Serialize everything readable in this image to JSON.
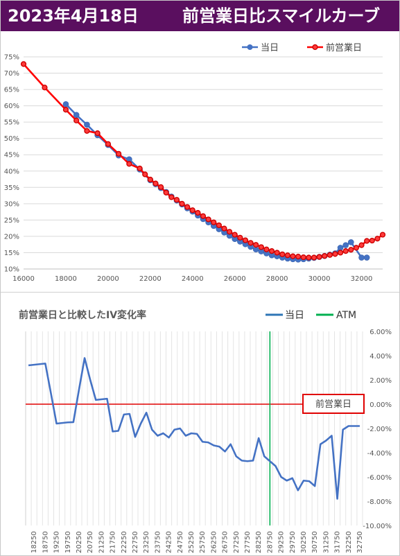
{
  "header": {
    "date": "2023年4月18日",
    "title": "前営業日比スマイルカーブ",
    "background": "#5a0f5f"
  },
  "chart_data": [
    {
      "type": "line",
      "title": "",
      "xlim": [
        16000,
        33000
      ],
      "ylim": [
        10,
        75
      ],
      "x_ticks": [
        16000,
        18000,
        20000,
        22000,
        24000,
        26000,
        28000,
        30000,
        32000
      ],
      "y_ticks": [
        "10%",
        "15%",
        "20%",
        "25%",
        "30%",
        "35%",
        "40%",
        "45%",
        "50%",
        "55%",
        "60%",
        "65%",
        "70%",
        "75%"
      ],
      "legend_position": "top-right",
      "grid": true,
      "series": [
        {
          "name": "当日",
          "color": "#4472c4",
          "x": [
            18000,
            18500,
            19000,
            19500,
            20000,
            20500,
            21000,
            21500,
            22000,
            22250,
            22500,
            22750,
            23000,
            23250,
            23500,
            23750,
            24000,
            24250,
            24500,
            24750,
            25000,
            25250,
            25500,
            25750,
            26000,
            26250,
            26500,
            26750,
            27000,
            27250,
            27500,
            27750,
            28000,
            28250,
            28500,
            28750,
            29000,
            29250,
            29500,
            29750,
            30000,
            30250,
            30500,
            30750,
            31000,
            31250,
            31500,
            32000,
            32250
          ],
          "y": [
            60.5,
            57.2,
            54.2,
            51.0,
            48.0,
            44.8,
            43.6,
            40.5,
            37.2,
            36.0,
            34.8,
            33.6,
            32.2,
            31.0,
            29.8,
            28.6,
            27.6,
            26.4,
            25.3,
            24.3,
            23.2,
            22.2,
            21.2,
            20.2,
            19.2,
            18.4,
            17.6,
            16.8,
            16.0,
            15.4,
            14.8,
            14.2,
            13.9,
            13.5,
            13.2,
            13.0,
            12.9,
            13.0,
            13.2,
            13.4,
            13.7,
            14.0,
            14.4,
            14.8,
            16.5,
            17.3,
            18.2,
            13.5,
            13.5
          ]
        },
        {
          "name": "前営業日",
          "color": "#ff0000",
          "x": [
            16000,
            17000,
            18000,
            18500,
            19000,
            19500,
            20000,
            20500,
            21000,
            21500,
            21750,
            22000,
            22250,
            22500,
            22750,
            23000,
            23250,
            23500,
            23750,
            24000,
            24250,
            24500,
            24750,
            25000,
            25250,
            25500,
            25750,
            26000,
            26250,
            26500,
            26750,
            27000,
            27250,
            27500,
            27750,
            28000,
            28250,
            28500,
            28750,
            29000,
            29250,
            29500,
            29750,
            30000,
            30250,
            30500,
            30750,
            31000,
            31250,
            31500,
            31750,
            32000,
            32250,
            32500,
            32750,
            33000
          ],
          "y": [
            72.8,
            65.6,
            58.8,
            55.5,
            52.3,
            51.6,
            48.3,
            45.3,
            42.2,
            40.8,
            39.0,
            37.4,
            36.2,
            35.1,
            33.4,
            32.0,
            31.2,
            30.0,
            29.0,
            28.0,
            27.2,
            26.2,
            25.2,
            24.3,
            23.4,
            22.4,
            21.4,
            20.5,
            19.6,
            18.8,
            18.0,
            17.4,
            16.7,
            16.0,
            15.5,
            15.0,
            14.5,
            14.2,
            13.9,
            13.8,
            13.6,
            13.5,
            13.5,
            13.7,
            14.0,
            14.3,
            14.6,
            15.0,
            15.5,
            15.9,
            16.5,
            17.3,
            18.6,
            18.7,
            19.3,
            20.5
          ]
        }
      ]
    },
    {
      "type": "line",
      "title": "前営業日と比較したIV変化率",
      "ylim": [
        -10,
        6
      ],
      "y_ticks": [
        "6.00%",
        "4.00%",
        "2.00%",
        "0.00%",
        "-2.00%",
        "-4.00%",
        "-6.00%",
        "-8.00%",
        "-10.00%"
      ],
      "x_labels": [
        "18250",
        "18750",
        "19250",
        "19750",
        "20250",
        "20750",
        "21250",
        "21750",
        "22250",
        "22750",
        "23250",
        "23750",
        "24250",
        "24750",
        "25250",
        "25750",
        "26250",
        "26750",
        "27250",
        "27750",
        "28250",
        "28750",
        "29250",
        "29750",
        "30250",
        "30750",
        "31250",
        "31750",
        "32250",
        "32750"
      ],
      "y_axis_position": "right",
      "legend_position": "top-right",
      "grid": "vertical",
      "atm_strike": 28750,
      "annotation": "前営業日",
      "series": [
        {
          "name": "当日",
          "color": "#4472c4",
          "x": [
            18000,
            18250,
            18500,
            18750,
            19000,
            19250,
            19500,
            19750,
            20000,
            20250,
            20500,
            20750,
            21000,
            21250,
            21500,
            21750,
            22000,
            22250,
            22500,
            22750,
            23000,
            23250,
            23500,
            23750,
            24000,
            24250,
            24500,
            24750,
            25000,
            25250,
            25500,
            25750,
            26000,
            26250,
            26500,
            26750,
            27000,
            27250,
            27500,
            27750,
            28000,
            28250,
            28500,
            28750,
            29000,
            29250,
            29500,
            29750,
            30000,
            30250,
            30500,
            30750,
            31000,
            31250,
            31500,
            31750,
            32000,
            32250,
            32500,
            32750
          ],
          "y": [
            3.2,
            3.25,
            3.3,
            3.35,
            0.9,
            -1.6,
            -1.55,
            -1.5,
            -1.48,
            1.2,
            3.8,
            2.0,
            0.35,
            0.4,
            0.45,
            -2.25,
            -2.2,
            -0.85,
            -0.8,
            -2.7,
            -1.6,
            -0.7,
            -2.1,
            -2.6,
            -2.4,
            -2.75,
            -2.1,
            -2.0,
            -2.6,
            -2.4,
            -2.45,
            -3.1,
            -3.15,
            -3.4,
            -3.5,
            -3.9,
            -3.3,
            -4.3,
            -4.65,
            -4.7,
            -4.65,
            -2.8,
            -4.3,
            -4.7,
            -5.1,
            -6.0,
            -6.3,
            -6.1,
            -7.1,
            -6.3,
            -6.35,
            -6.75,
            -3.3,
            -3.0,
            -2.6,
            -7.8,
            -2.1,
            -1.8,
            -1.8,
            -1.8
          ]
        },
        {
          "name": "ATM",
          "color": "#00b050"
        }
      ]
    }
  ]
}
